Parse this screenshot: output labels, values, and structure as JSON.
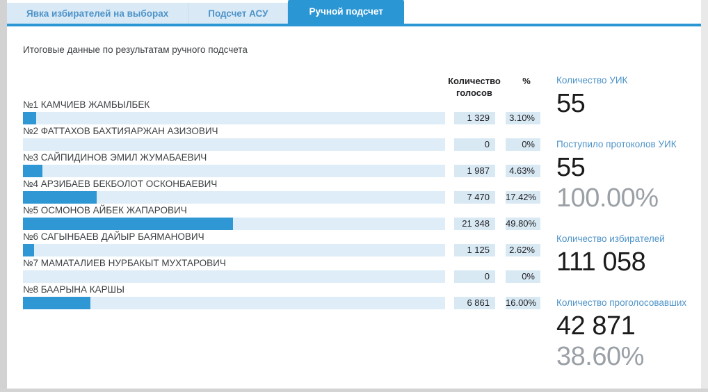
{
  "tabs": [
    {
      "label": "Явка избирателей на выборах",
      "active": false
    },
    {
      "label": "Подсчет АСУ",
      "active": false
    },
    {
      "label": "Ручной подсчет",
      "active": true
    }
  ],
  "title": "Итоговые данные по результатам ручного подсчета",
  "table": {
    "headers": {
      "votes": "Количество голосов",
      "percent": "%"
    },
    "rows": [
      {
        "name": "№1 КАМЧИЕВ ЖАМБЫЛБЕК",
        "votes": "1 329",
        "percent": "3.10%",
        "pct": 3.1
      },
      {
        "name": "№2 ФАТТАХОВ БАХТИЯАРЖАН АЗИЗОВИЧ",
        "votes": "0",
        "percent": "0%",
        "pct": 0
      },
      {
        "name": "№3 САЙПИДИНОВ ЭМИЛ ЖУМАБАЕВИЧ",
        "votes": "1 987",
        "percent": "4.63%",
        "pct": 4.63
      },
      {
        "name": "№4 АРЗИБАЕВ БЕКБОЛОТ ОСКОНБАЕВИЧ",
        "votes": "7 470",
        "percent": "17.42%",
        "pct": 17.42
      },
      {
        "name": "№5 ОСМОНОВ АЙБЕК ЖАПАРОВИЧ",
        "votes": "21 348",
        "percent": "49.80%",
        "pct": 49.8
      },
      {
        "name": "№6 САГЫНБАЕВ ДАЙЫР БАЯМАНОВИЧ",
        "votes": "1 125",
        "percent": "2.62%",
        "pct": 2.62
      },
      {
        "name": "№7 МАМАТАЛИЕВ НУРБАКЫТ МУХТАРОВИЧ",
        "votes": "0",
        "percent": "0%",
        "pct": 0
      },
      {
        "name": "№8 БААРЫНА КАРШЫ",
        "votes": "6 861",
        "percent": "16.00%",
        "pct": 16.0
      }
    ]
  },
  "stats": [
    {
      "label": "Количество УИК",
      "value": "55",
      "percent": ""
    },
    {
      "label": "Поступило протоколов УИК",
      "value": "55",
      "percent": "100.00%"
    },
    {
      "label": "Количество избирателей",
      "value": "111 058",
      "percent": ""
    },
    {
      "label": "Количество проголосовавших",
      "value": "42 871",
      "percent": "38.60%"
    }
  ],
  "colors": {
    "accent": "#2b96d4",
    "bar_fill": "#2f97d3",
    "bar_track": "#deedf7",
    "value_box": "#d9e9f4",
    "tab_inactive_bg": "#d9eaf6",
    "label_blue": "#4e93c8",
    "muted_percent": "#9aa0a6"
  }
}
